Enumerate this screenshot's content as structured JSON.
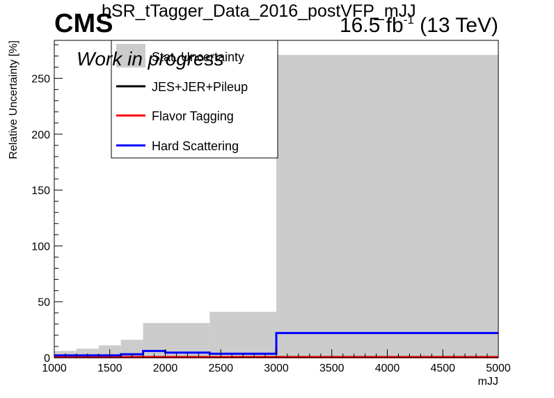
{
  "header": {
    "experiment": "CMS",
    "plot_name": "bSR_tTagger_Data_2016_postVFP_mJJ",
    "lumi": "16.5 fb",
    "lumi_exp": "-1",
    "energy": "(13 TeV)",
    "status": "Work in progress"
  },
  "colors": {
    "stat_fill": "#cccccc",
    "jes": "#000000",
    "flavor": "#ff0000",
    "hard": "#0000ff"
  },
  "chart_data": {
    "type": "area",
    "xlabel": "mJJ",
    "ylabel": "Relative Uncertainty [%]",
    "xlim": [
      1000,
      5000
    ],
    "ylim": [
      0,
      284
    ],
    "x_ticks": [
      1000,
      1500,
      2000,
      2500,
      3000,
      3500,
      4000,
      4500,
      5000
    ],
    "x_tick_labels": [
      "1000",
      "1500",
      "2000",
      "2500",
      "3000",
      "3500",
      "4000",
      "4500",
      "5000"
    ],
    "y_ticks": [
      0,
      50,
      100,
      150,
      200,
      250
    ],
    "y_tick_labels": [
      "0",
      "50",
      "100",
      "150",
      "200",
      "250"
    ],
    "bin_edges": [
      1000,
      1200,
      1400,
      1600,
      1800,
      2000,
      2400,
      3000,
      5000
    ],
    "legend_position": "top-left",
    "series": [
      {
        "name": "Stat. Uncertainty",
        "kind": "fill",
        "values": [
          6,
          8,
          11,
          16,
          31,
          31,
          41,
          271
        ]
      },
      {
        "name": "JES+JER+Pileup",
        "kind": "line",
        "values": [
          0.5,
          0.5,
          0.5,
          0.5,
          0.5,
          0.5,
          0.5,
          0.5
        ]
      },
      {
        "name": "Flavor Tagging",
        "kind": "line",
        "values": [
          0.5,
          0.5,
          0.5,
          0.5,
          0.5,
          0.5,
          0.5,
          0.5
        ]
      },
      {
        "name": "Hard Scattering",
        "kind": "line",
        "values": [
          2,
          2,
          2,
          3,
          6,
          4.5,
          3.5,
          22
        ]
      }
    ]
  }
}
